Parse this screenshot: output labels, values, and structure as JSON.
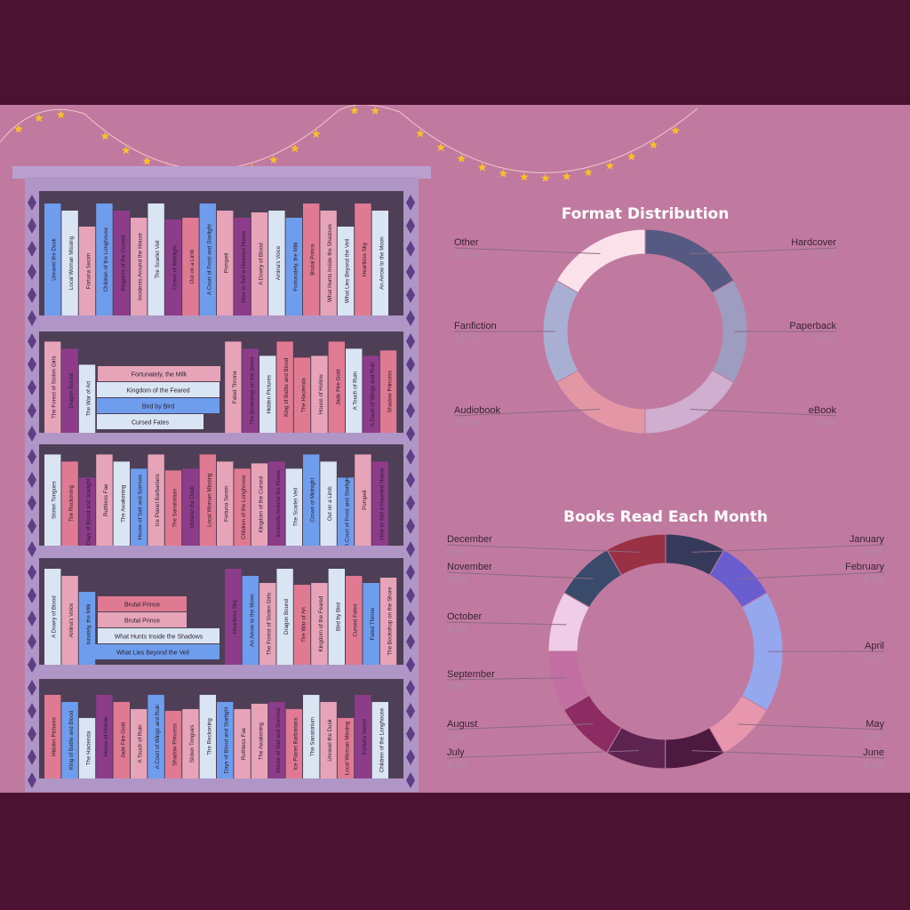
{
  "palette": {
    "background": "#4b1232",
    "panel": "#c07aa0",
    "shelf_frame": "#b096c6",
    "shelf_back": "#4e3f56",
    "diamond": "#5e3f86",
    "lights": "#f6c02a"
  },
  "bookshelf": {
    "rows": [
      {
        "vertical": [
          {
            "title": "Unravel the Dusk",
            "color": "#6e9ded"
          },
          {
            "title": "Local Woman Missing",
            "color": "#d9e5f3"
          },
          {
            "title": "Fortuna Sworn",
            "color": "#e7a4b8"
          },
          {
            "title": "Children of the Longhouse",
            "color": "#6e9ded"
          },
          {
            "title": "Kingdom of the Cursed",
            "color": "#8d3c8a"
          },
          {
            "title": "Incidents Around the House",
            "color": "#e7a4b8"
          },
          {
            "title": "The Scarlet Veil",
            "color": "#d9e5f3"
          },
          {
            "title": "Crown of Midnight",
            "color": "#8d3c8a"
          },
          {
            "title": "Out on a Limb",
            "color": "#e07a92"
          },
          {
            "title": "A Court of Frost and Starlight",
            "color": "#6e9ded"
          },
          {
            "title": "Pompeii",
            "color": "#e7a4b8"
          },
          {
            "title": "How to Sell a Haunted House",
            "color": "#8d3c8a"
          },
          {
            "title": "A Dowry of Blood",
            "color": "#e7a4b8"
          },
          {
            "title": "Amina's Voice",
            "color": "#d9e5f3"
          },
          {
            "title": "Fortunately, the Milk",
            "color": "#6e9ded"
          },
          {
            "title": "Brutal Prince",
            "color": "#e07a92"
          },
          {
            "title": "What Hunts Inside the Shadows",
            "color": "#e7a4b8"
          },
          {
            "title": "What Lies Beyond the Veil",
            "color": "#d9e5f3"
          },
          {
            "title": "Heartless Sky",
            "color": "#e07a92"
          },
          {
            "title": "An Arrow to the Moon",
            "color": "#d9e5f3"
          }
        ],
        "stack": []
      },
      {
        "vertical": [
          {
            "title": "The Forest of Stolen Girls",
            "color": "#e7a4b8"
          },
          {
            "title": "Dragon Bound",
            "color": "#8d3c8a"
          },
          {
            "title": "The War of Art",
            "color": "#d9e5f3"
          },
          {
            "title": "Fated Throne",
            "color": "#e7a4b8"
          },
          {
            "title": "The Bookshop on the Shore",
            "color": "#8d3c8a"
          },
          {
            "title": "Hidden Pictures",
            "color": "#d9e5f3"
          },
          {
            "title": "King of Battle and Blood",
            "color": "#e07a92"
          },
          {
            "title": "The Hacienda",
            "color": "#e07a92"
          },
          {
            "title": "House of Hollow",
            "color": "#e7a4b8"
          },
          {
            "title": "Jade Fire Gold",
            "color": "#e07a92"
          },
          {
            "title": "A Touch of Ruin",
            "color": "#d9e5f3"
          },
          {
            "title": "A Court of Wings and Ruin",
            "color": "#8d3c8a"
          },
          {
            "title": "Shadow Princess",
            "color": "#e07a92"
          }
        ],
        "stack": [
          {
            "title": "Fortunately, the Milk",
            "color": "#e7a4b8"
          },
          {
            "title": "Kingdom of the Feared",
            "color": "#d9e5f3"
          },
          {
            "title": "Bird by Bird",
            "color": "#6e9ded"
          },
          {
            "title": "Cursed Fates",
            "color": "#d9e5f3"
          }
        ]
      },
      {
        "vertical": [
          {
            "title": "Stolen Tongues",
            "color": "#d9e5f3"
          },
          {
            "title": "The Reckoning",
            "color": "#e07a92"
          },
          {
            "title": "Days of Blood and Starlight",
            "color": "#8d3c8a"
          },
          {
            "title": "Ruthless Fae",
            "color": "#e7a4b8"
          },
          {
            "title": "The Awakening",
            "color": "#d9e5f3"
          },
          {
            "title": "House of Salt and Sorrows",
            "color": "#6e9ded"
          },
          {
            "title": "Ice Planet Barbarians",
            "color": "#e7a4b8"
          },
          {
            "title": "The Sanatorium",
            "color": "#e07a92"
          },
          {
            "title": "Unravel the Dusk",
            "color": "#8d3c8a"
          },
          {
            "title": "Local Woman Missing",
            "color": "#e07a92"
          },
          {
            "title": "Fortuna Sworn",
            "color": "#e7a4b8"
          },
          {
            "title": "Children of the Longhouse",
            "color": "#e07a92"
          },
          {
            "title": "Kingdom of the Cursed",
            "color": "#e7a4b8"
          },
          {
            "title": "Incidents Around the House",
            "color": "#8d3c8a"
          },
          {
            "title": "The Scarlet Veil",
            "color": "#d9e5f3"
          },
          {
            "title": "Crown of Midnight",
            "color": "#6e9ded"
          },
          {
            "title": "Out on a Limb",
            "color": "#d9e5f3"
          },
          {
            "title": "A Court of Frost and Starlight",
            "color": "#6e9ded"
          },
          {
            "title": "Pompeii",
            "color": "#e7a4b8"
          },
          {
            "title": "How to Sell a Haunted House",
            "color": "#8d3c8a"
          }
        ],
        "stack": []
      },
      {
        "vertical": [
          {
            "title": "A Dowry of Blood",
            "color": "#d9e5f3"
          },
          {
            "title": "Amina's Voice",
            "color": "#e7a4b8"
          },
          {
            "title": "Fortunately, the Milk",
            "color": "#6e9ded"
          },
          {
            "title": "Heartless Sky",
            "color": "#8d3c8a"
          },
          {
            "title": "An Arrow to the Moon",
            "color": "#6e9ded"
          },
          {
            "title": "The Forest of Stolen Girls",
            "color": "#e7a4b8"
          },
          {
            "title": "Dragon Bound",
            "color": "#d9e5f3"
          },
          {
            "title": "The War of Art",
            "color": "#e07a92"
          },
          {
            "title": "Kingdom of the Feared",
            "color": "#e7a4b8"
          },
          {
            "title": "Bird by Bird",
            "color": "#d9e5f3"
          },
          {
            "title": "Cursed Fates",
            "color": "#e07a92"
          },
          {
            "title": "Fated Throne",
            "color": "#6e9ded"
          },
          {
            "title": "The Bookshop on the Shore",
            "color": "#e7a4b8"
          }
        ],
        "stack": [
          {
            "title": "Brutal Prince",
            "color": "#e07a92"
          },
          {
            "title": "Brutal Prince",
            "color": "#e7a4b8"
          },
          {
            "title": "What Hunts Inside the Shadows",
            "color": "#d9e5f3"
          },
          {
            "title": "What Lies Beyond the Veil",
            "color": "#6e9ded"
          }
        ]
      },
      {
        "vertical": [
          {
            "title": "Hidden Pictures",
            "color": "#e07a92"
          },
          {
            "title": "King of Battle and Blood",
            "color": "#6e9ded"
          },
          {
            "title": "The Hacienda",
            "color": "#d9e5f3"
          },
          {
            "title": "House of Hollow",
            "color": "#8d3c8a"
          },
          {
            "title": "Jade Fire Gold",
            "color": "#e07a92"
          },
          {
            "title": "A Touch of Ruin",
            "color": "#e7a4b8"
          },
          {
            "title": "A Court of Wings and Ruin",
            "color": "#6e9ded"
          },
          {
            "title": "Shadow Princess",
            "color": "#e07a92"
          },
          {
            "title": "Stolen Tongues",
            "color": "#e7a4b8"
          },
          {
            "title": "The Reckoning",
            "color": "#d9e5f3"
          },
          {
            "title": "Days of Blood and Starlight",
            "color": "#6e9ded"
          },
          {
            "title": "Ruthless Fae",
            "color": "#e7a4b8"
          },
          {
            "title": "The Awakening",
            "color": "#e7a4b8"
          },
          {
            "title": "House of Salt and Sorrows",
            "color": "#8d3c8a"
          },
          {
            "title": "Ice Planet Barbarians",
            "color": "#e07a92"
          },
          {
            "title": "The Sanatorium",
            "color": "#d9e5f3"
          },
          {
            "title": "Unravel the Dusk",
            "color": "#e7a4b8"
          },
          {
            "title": "Local Woman Missing",
            "color": "#e07a92"
          },
          {
            "title": "Fortuna Sworn",
            "color": "#8d3c8a"
          },
          {
            "title": "Children of the Longhouse",
            "color": "#d9e5f3"
          }
        ],
        "stack": []
      }
    ]
  },
  "chart_data": [
    {
      "type": "pie",
      "subtype": "donut",
      "title": "Format Distribution",
      "categories": [
        "Hardcover",
        "Paperback",
        "eBook",
        "Audiobook",
        "Fanfiction",
        "Other"
      ],
      "values": [
        16.7,
        16.7,
        16.7,
        16.7,
        16.7,
        16.7
      ],
      "labels": [
        "16.7%",
        "16.7%",
        "16.7%",
        "16.7%",
        "16.7%",
        "16.7%"
      ],
      "colors": [
        "#565a82",
        "#9e9cc0",
        "#cfaed0",
        "#e397a5",
        "#a9afd3",
        "#fbe2ea"
      ]
    },
    {
      "type": "pie",
      "subtype": "donut",
      "title": "Books Read Each Month",
      "categories": [
        "January",
        "February",
        "April",
        "May",
        "June",
        "July",
        "August",
        "September",
        "October",
        "November",
        "December"
      ],
      "values": [
        8.3,
        8.3,
        16.7,
        8.3,
        8.3,
        8.3,
        8.3,
        8.3,
        8.3,
        8.3,
        8.3
      ],
      "labels": [
        "8.3%",
        "8.3%",
        "16.7%",
        "8.3%",
        "8.3%",
        "8.3%",
        "8.3%",
        "8.3%",
        "8.3%",
        "8.3%",
        "8.3%"
      ],
      "colors": [
        "#363a5a",
        "#6a5ecf",
        "#95a8ee",
        "#e796ad",
        "#4d1a3f",
        "#5e2450",
        "#8c2c62",
        "#c26ea3",
        "#efcde6",
        "#394a6a",
        "#993044"
      ]
    }
  ]
}
